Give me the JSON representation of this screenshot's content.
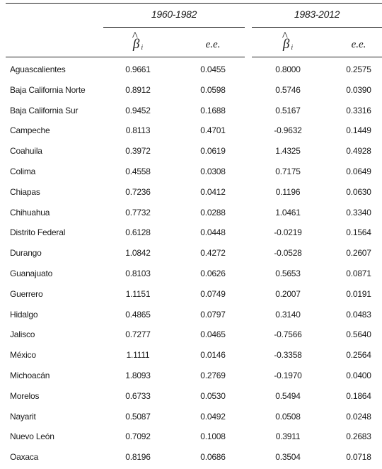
{
  "header": {
    "period1": "1960-1982",
    "period2": "1983-2012",
    "beta_symbol": "β",
    "beta_subscript": "i",
    "se_label": "e.e."
  },
  "rows": [
    {
      "state": "Aguascalientes",
      "b1": "0.9661",
      "e1": "0.0455",
      "b2": "0.8000",
      "e2": "0.2575"
    },
    {
      "state": "Baja California Norte",
      "b1": "0.8912",
      "e1": "0.0598",
      "b2": "0.5746",
      "e2": "0.0390"
    },
    {
      "state": "Baja California Sur",
      "b1": "0.9452",
      "e1": "0.1688",
      "b2": "0.5167",
      "e2": "0.3316"
    },
    {
      "state": "Campeche",
      "b1": "0.8113",
      "e1": "0.4701",
      "b2": "-0.9632",
      "e2": "0.1449"
    },
    {
      "state": "Coahuila",
      "b1": "0.3972",
      "e1": "0.0619",
      "b2": "1.4325",
      "e2": "0.4928"
    },
    {
      "state": "Colima",
      "b1": "0.4558",
      "e1": "0.0308",
      "b2": "0.7175",
      "e2": "0.0649"
    },
    {
      "state": "Chiapas",
      "b1": "0.7236",
      "e1": "0.0412",
      "b2": "0.1196",
      "e2": "0.0630"
    },
    {
      "state": "Chihuahua",
      "b1": "0.7732",
      "e1": "0.0288",
      "b2": "1.0461",
      "e2": "0.3340"
    },
    {
      "state": "Distrito Federal",
      "b1": "0.6128",
      "e1": "0.0448",
      "b2": "-0.0219",
      "e2": "0.1564"
    },
    {
      "state": "Durango",
      "b1": "1.0842",
      "e1": "0.4272",
      "b2": "-0.0528",
      "e2": "0.2607"
    },
    {
      "state": "Guanajuato",
      "b1": "0.8103",
      "e1": "0.0626",
      "b2": "0.5653",
      "e2": "0.0871"
    },
    {
      "state": "Guerrero",
      "b1": "1.1151",
      "e1": "0.0749",
      "b2": "0.2007",
      "e2": "0.0191"
    },
    {
      "state": "Hidalgo",
      "b1": "0.4865",
      "e1": "0.0797",
      "b2": "0.3140",
      "e2": "0.0483"
    },
    {
      "state": "Jalisco",
      "b1": "0.7277",
      "e1": "0.0465",
      "b2": "-0.7566",
      "e2": "0.5640"
    },
    {
      "state": "México",
      "b1": "1.1111",
      "e1": "0.0146",
      "b2": "-0.3358",
      "e2": "0.2564"
    },
    {
      "state": "Michoacán",
      "b1": "1.8093",
      "e1": "0.2769",
      "b2": "-0.1970",
      "e2": "0.0400"
    },
    {
      "state": "Morelos",
      "b1": "0.6733",
      "e1": "0.0530",
      "b2": "0.5494",
      "e2": "0.1864"
    },
    {
      "state": "Nayarit",
      "b1": "0.5087",
      "e1": "0.0492",
      "b2": "0.0508",
      "e2": "0.0248"
    },
    {
      "state": "Nuevo León",
      "b1": "0.7092",
      "e1": "0.1008",
      "b2": "0.3911",
      "e2": "0.2683"
    },
    {
      "state": "Oaxaca",
      "b1": "0.8196",
      "e1": "0.0686",
      "b2": "0.3504",
      "e2": "0.0718"
    }
  ]
}
